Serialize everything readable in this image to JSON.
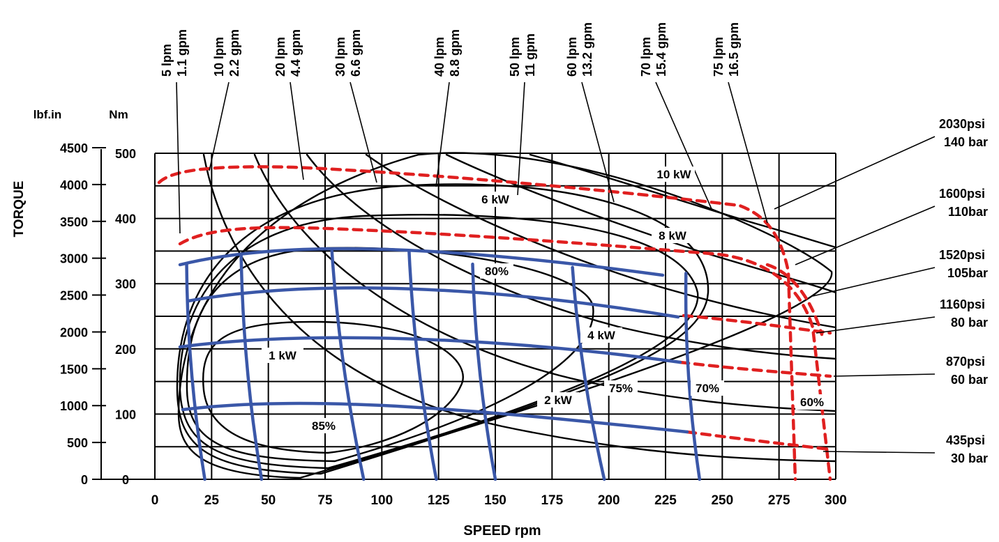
{
  "chart_data": {
    "type": "line",
    "title": "",
    "xlabel": "SPEED rpm",
    "ylabel": "TORQUE",
    "y_unit_labels": [
      "lbf.in",
      "Nm"
    ],
    "x_ticks": [
      "0",
      "25",
      "50",
      "75",
      "100",
      "125",
      "150",
      "175",
      "200",
      "225",
      "250",
      "275",
      "300"
    ],
    "y_ticks_lbfin": [
      "0",
      "500",
      "1000",
      "1500",
      "2000",
      "2500",
      "3000",
      "3500",
      "4000",
      "4500"
    ],
    "y_ticks_nm": [
      "0",
      "100",
      "200",
      "300",
      "400",
      "500"
    ],
    "xlim": [
      0,
      300
    ],
    "ylim_nm": [
      0,
      500
    ],
    "grid": true,
    "colors": {
      "flow": "#3a57a8",
      "pressure": "#e02020",
      "curves": "#000000"
    },
    "flow_lines": [
      {
        "lpm": "5 lpm",
        "gpm": "1.1 gpm",
        "points": [
          [
            14,
            330
          ],
          [
            22,
            0
          ]
        ]
      },
      {
        "lpm": "10 lpm",
        "gpm": "2.2 gpm",
        "points": [
          [
            38,
            345
          ],
          [
            47,
            0
          ]
        ]
      },
      {
        "lpm": "20 lpm",
        "gpm": "4.4 gpm",
        "points": [
          [
            78,
            350
          ],
          [
            92,
            0
          ]
        ]
      },
      {
        "lpm": "30 lpm",
        "gpm": "6.6 gpm",
        "points": [
          [
            112,
            350
          ],
          [
            124,
            0
          ]
        ]
      },
      {
        "lpm": "40 lpm",
        "gpm": "8.8 gpm",
        "points": [
          [
            140,
            330
          ],
          [
            150,
            0
          ]
        ]
      },
      {
        "lpm": "50 lpm",
        "gpm": "11 gpm",
        "points": [
          [
            184,
            325
          ],
          [
            198,
            0
          ]
        ]
      },
      {
        "lpm": "60 lpm",
        "gpm": "13.2 gpm",
        "points": [
          [
            234,
            316
          ],
          [
            240,
            0
          ]
        ]
      }
    ],
    "flow_labels_extra": [
      {
        "lpm": "70 lpm",
        "gpm": "15.4 gpm"
      },
      {
        "lpm": "75 lpm",
        "gpm": "16.5 gpm"
      }
    ],
    "pressure_lines": [
      {
        "psi": "435psi",
        "bar": "30 bar",
        "torque_nm": 95
      },
      {
        "psi": "870psi",
        "bar": "60 bar",
        "torque_nm": 185
      },
      {
        "psi": "1160psi",
        "bar": "80 bar",
        "torque_nm": 245
      },
      {
        "psi": "1520psi",
        "bar": "105bar",
        "torque_nm": 300
      },
      {
        "psi": "1600psi",
        "bar": "110bar",
        "torque_nm": 390
      },
      {
        "psi": "2030psi",
        "bar": "140 bar",
        "torque_nm": 480
      }
    ],
    "power_labels": [
      "1 kW",
      "2 kW",
      "4 kW",
      "6 kW",
      "8 kW",
      "10 kW"
    ],
    "efficiency_labels": [
      "85%",
      "80%",
      "75%",
      "70%",
      "60%"
    ]
  }
}
